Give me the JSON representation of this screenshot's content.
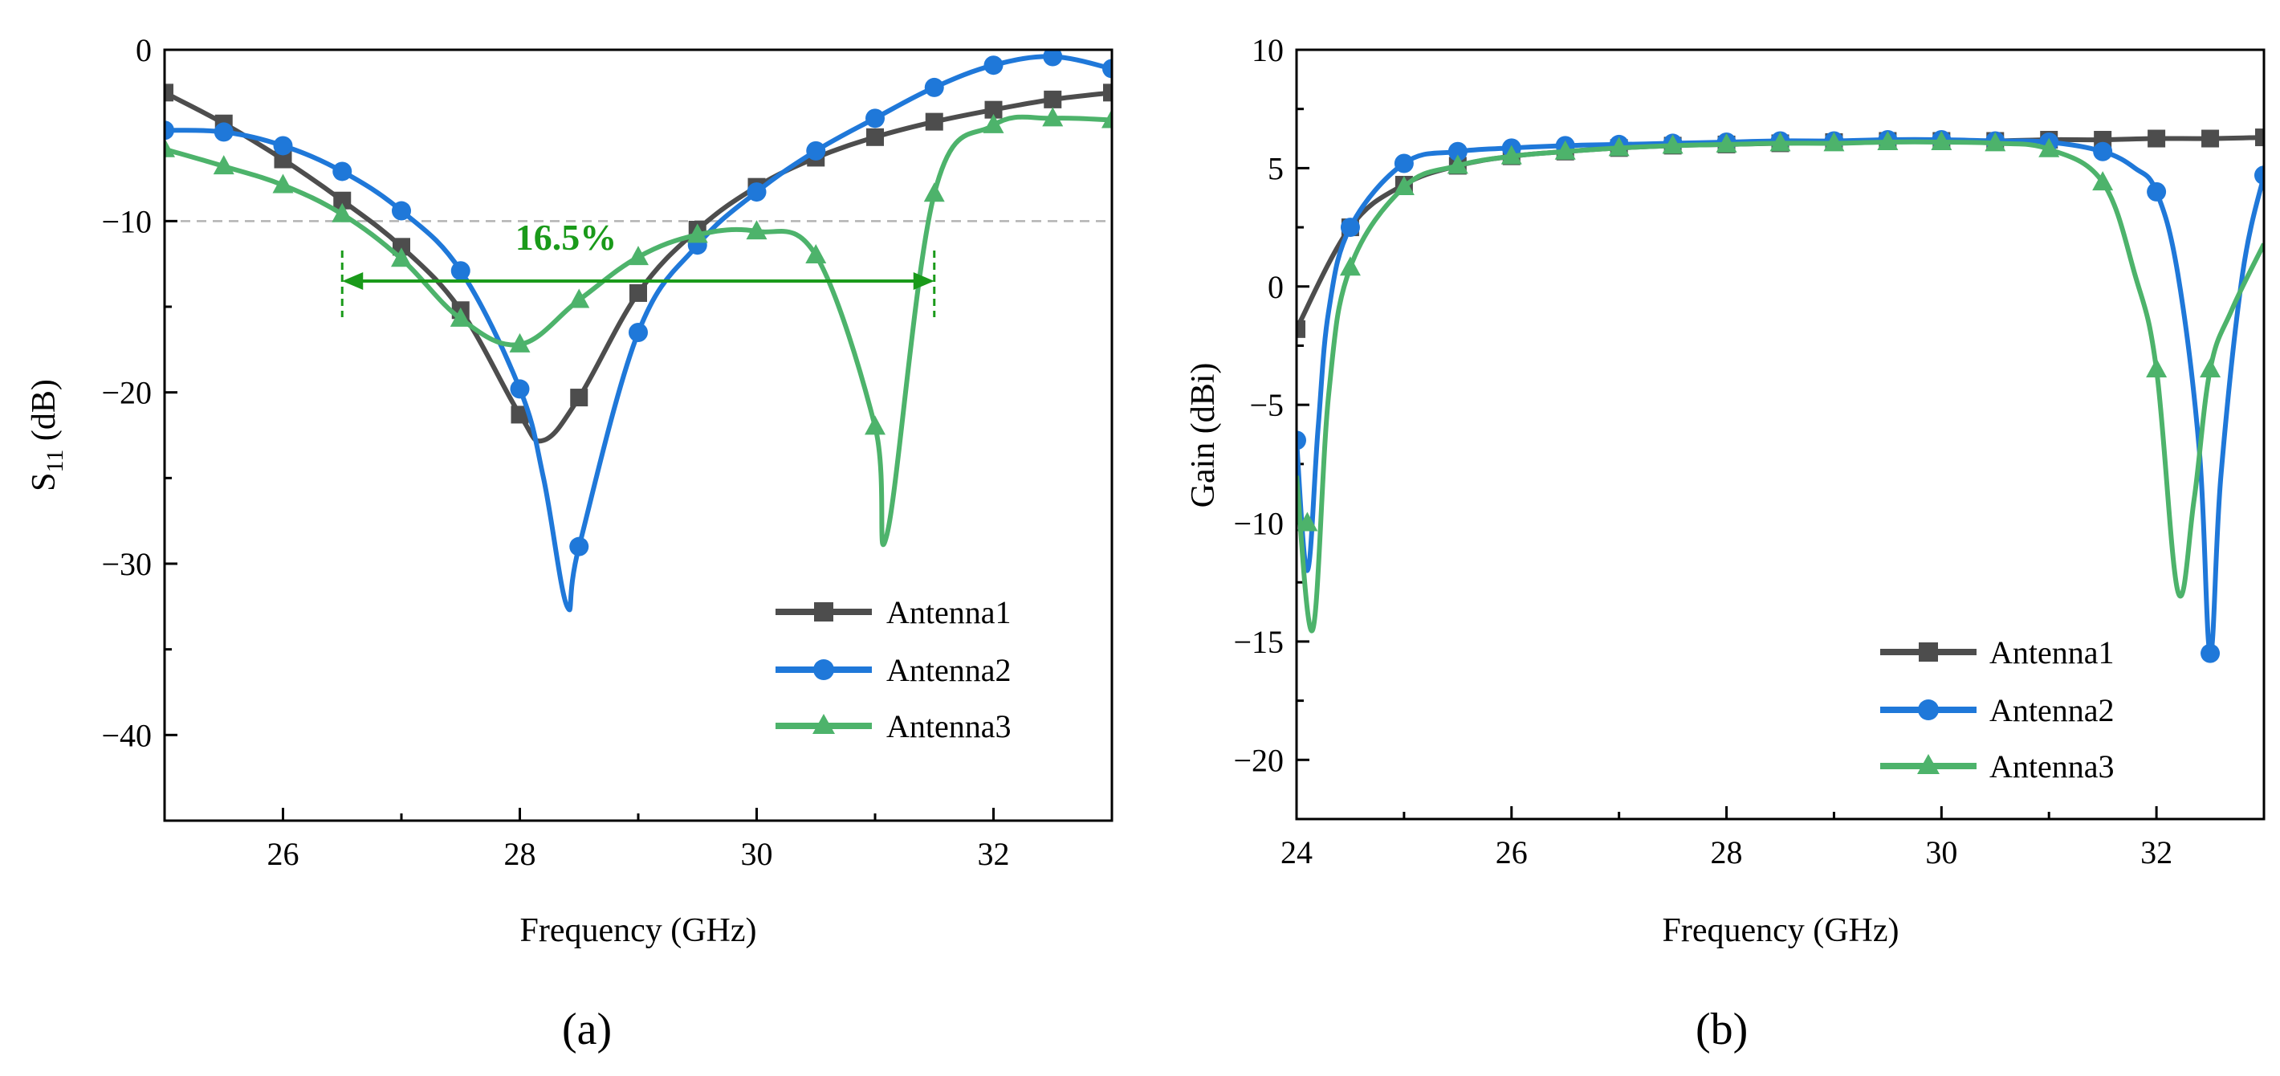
{
  "figure": {
    "panel_a_label": "(a)",
    "panel_b_label": "(b)",
    "colors": {
      "antenna1": "#4d4d4d",
      "antenna2": "#1f78d9",
      "antenna3": "#4db36b",
      "bandwidth": "#1a9a1a",
      "reference": "#b3b3b3"
    }
  },
  "chart_data": [
    {
      "type": "line",
      "panel": "(a)",
      "title": "",
      "xlabel": "Frequency (GHz)",
      "ylabel_main": "S",
      "ylabel_sub": "11",
      "ylabel_unit": " (dB)",
      "xlim": [
        25,
        33
      ],
      "ylim": [
        -45,
        0
      ],
      "xticks": [
        26,
        28,
        30,
        32
      ],
      "xtick_labels": [
        "26",
        "28",
        "30",
        "32"
      ],
      "yticks": [
        0,
        -10,
        -20,
        -30,
        -40
      ],
      "ytick_labels": [
        "0",
        "−10",
        "−20",
        "−30",
        "−40"
      ],
      "reference_line": -10,
      "annotation": {
        "text": "16.5%",
        "x_start": 26.5,
        "x_end": 31.5,
        "y": -11.2,
        "arrow_y": -13.5
      },
      "legend_position": "bottom-right",
      "series": [
        {
          "name": "Antenna1",
          "marker": "square",
          "x": [
            25,
            25.5,
            26,
            26.5,
            27,
            27.5,
            28,
            28.2,
            28.5,
            29,
            29.5,
            30,
            30.5,
            31,
            31.5,
            32,
            32.5,
            33
          ],
          "y": [
            -2.5,
            -4.3,
            -6.4,
            -8.8,
            -11.5,
            -15.2,
            -21.3,
            -22.8,
            -20.3,
            -14.2,
            -10.5,
            -8.0,
            -6.3,
            -5.1,
            -4.2,
            -3.5,
            -2.9,
            -2.5
          ],
          "marker_x": [
            25,
            25.5,
            26,
            26.5,
            27,
            27.5,
            28,
            28.5,
            29,
            29.5,
            30,
            30.5,
            31,
            31.5,
            32,
            32.5,
            33
          ],
          "marker_y": [
            -2.5,
            -4.3,
            -6.4,
            -8.8,
            -11.5,
            -15.2,
            -21.3,
            -20.3,
            -14.2,
            -10.5,
            -8.0,
            -6.3,
            -5.1,
            -4.2,
            -3.5,
            -2.9,
            -2.5
          ]
        },
        {
          "name": "Antenna2",
          "marker": "circle",
          "x": [
            25,
            25.5,
            26,
            26.5,
            27,
            27.5,
            28,
            28.2,
            28.4,
            28.5,
            29,
            29.5,
            30,
            30.5,
            31,
            31.5,
            32,
            32.5,
            33
          ],
          "y": [
            -4.7,
            -4.8,
            -5.6,
            -7.1,
            -9.4,
            -12.9,
            -19.8,
            -25.0,
            -32.5,
            -29.0,
            -16.5,
            -11.4,
            -8.3,
            -5.9,
            -4.0,
            -2.2,
            -0.9,
            -0.4,
            -1.1
          ],
          "marker_x": [
            25,
            25.5,
            26,
            26.5,
            27,
            27.5,
            28,
            28.5,
            29,
            29.5,
            30,
            30.5,
            31,
            31.5,
            32,
            32.5,
            33
          ],
          "marker_y": [
            -4.7,
            -4.8,
            -5.6,
            -7.1,
            -9.4,
            -12.9,
            -19.8,
            -29.0,
            -16.5,
            -11.4,
            -8.3,
            -5.9,
            -4.0,
            -2.2,
            -0.9,
            -0.4,
            -1.1
          ]
        },
        {
          "name": "Antenna3",
          "marker": "triangle",
          "x": [
            25,
            25.5,
            26,
            26.5,
            27,
            27.5,
            28,
            28.5,
            29,
            29.5,
            30,
            30.5,
            31,
            31.1,
            31.5,
            32,
            32.5,
            33
          ],
          "y": [
            -5.8,
            -6.8,
            -7.9,
            -9.6,
            -12.2,
            -15.7,
            -17.2,
            -14.6,
            -12.1,
            -10.8,
            -10.6,
            -12.0,
            -22.0,
            -28.3,
            -8.4,
            -4.4,
            -4.0,
            -4.1
          ],
          "marker_x": [
            25,
            25.5,
            26,
            26.5,
            27,
            27.5,
            28,
            28.5,
            29,
            29.5,
            30,
            30.5,
            31,
            31.5,
            32,
            32.5,
            33
          ],
          "marker_y": [
            -5.8,
            -6.8,
            -7.9,
            -9.6,
            -12.2,
            -15.7,
            -17.2,
            -14.6,
            -12.1,
            -10.8,
            -10.6,
            -12.0,
            -22.0,
            -8.4,
            -4.4,
            -4.0,
            -4.1
          ]
        }
      ]
    },
    {
      "type": "line",
      "panel": "(b)",
      "title": "",
      "xlabel": "Frequency (GHz)",
      "ylabel": "Gain (dBi)",
      "xlim": [
        24,
        33
      ],
      "ylim": [
        -22.5,
        10
      ],
      "xticks": [
        24,
        26,
        28,
        30,
        32
      ],
      "xtick_labels": [
        "24",
        "26",
        "28",
        "30",
        "32"
      ],
      "yticks": [
        10,
        5,
        0,
        -5,
        -10,
        -15,
        -20
      ],
      "ytick_labels": [
        "10",
        "5",
        "0",
        "−5",
        "−10",
        "−15",
        "−20"
      ],
      "legend_position": "bottom-right",
      "series": [
        {
          "name": "Antenna1",
          "marker": "square",
          "x": [
            24,
            24.5,
            25,
            25.5,
            26,
            26.5,
            27,
            27.5,
            28,
            28.5,
            29,
            29.5,
            30,
            30.5,
            31,
            31.5,
            32,
            32.5,
            33
          ],
          "y": [
            -1.8,
            2.5,
            4.3,
            5.1,
            5.5,
            5.7,
            5.85,
            5.95,
            6.0,
            6.05,
            6.1,
            6.15,
            6.15,
            6.15,
            6.2,
            6.2,
            6.25,
            6.25,
            6.3
          ],
          "marker_x": [
            24,
            24.5,
            25,
            25.5,
            26,
            26.5,
            27,
            27.5,
            28,
            28.5,
            29,
            29.5,
            30,
            30.5,
            31,
            31.5,
            32,
            32.5,
            33
          ],
          "marker_y": [
            -1.8,
            2.5,
            4.3,
            5.1,
            5.5,
            5.7,
            5.85,
            5.95,
            6.0,
            6.05,
            6.1,
            6.15,
            6.15,
            6.15,
            6.2,
            6.2,
            6.25,
            6.25,
            6.3
          ]
        },
        {
          "name": "Antenna2",
          "marker": "circle",
          "x": [
            24,
            24.1,
            24.2,
            24.3,
            24.5,
            25,
            25.5,
            26,
            26.5,
            27,
            27.5,
            28,
            28.5,
            29,
            29.5,
            30,
            30.5,
            31,
            31.5,
            31.8,
            32,
            32.2,
            32.4,
            32.5,
            32.6,
            32.8,
            33
          ],
          "y": [
            -6.5,
            -12.0,
            -6.0,
            -1.0,
            2.5,
            5.2,
            5.7,
            5.85,
            5.95,
            6.0,
            6.05,
            6.1,
            6.15,
            6.15,
            6.2,
            6.2,
            6.15,
            6.1,
            5.7,
            5.0,
            4.0,
            0.5,
            -7.0,
            -15.5,
            -8.0,
            0.5,
            4.7
          ],
          "marker_x": [
            24,
            24.5,
            25,
            25.5,
            26,
            26.5,
            27,
            27.5,
            28,
            28.5,
            29,
            29.5,
            30,
            30.5,
            31,
            31.5,
            32,
            32.5,
            33
          ],
          "marker_y": [
            -6.5,
            2.5,
            5.2,
            5.7,
            5.85,
            5.95,
            6.0,
            6.05,
            6.1,
            6.15,
            6.15,
            6.2,
            6.2,
            6.15,
            6.1,
            5.7,
            4.0,
            -15.5,
            4.7
          ]
        },
        {
          "name": "Antenna3",
          "marker": "triangle",
          "x": [
            24,
            24.15,
            24.3,
            24.5,
            25,
            25.5,
            26,
            26.5,
            27,
            27.5,
            28,
            28.5,
            29,
            29.5,
            30,
            30.5,
            31,
            31.5,
            31.8,
            32,
            32.2,
            32.35,
            32.5,
            32.7,
            33
          ],
          "y": [
            -8.0,
            -14.5,
            -4.5,
            0.8,
            4.2,
            5.1,
            5.5,
            5.7,
            5.85,
            5.95,
            6.0,
            6.05,
            6.05,
            6.1,
            6.1,
            6.05,
            5.8,
            4.4,
            0.5,
            -3.5,
            -12.9,
            -9.0,
            -3.5,
            -1.0,
            1.8
          ],
          "marker_x": [
            24.1,
            24.5,
            25,
            25.5,
            26,
            26.5,
            27,
            27.5,
            28,
            28.5,
            29,
            29.5,
            30,
            30.5,
            31,
            31.5,
            32,
            32.5
          ],
          "marker_y": [
            -10.0,
            0.8,
            4.2,
            5.1,
            5.5,
            5.7,
            5.85,
            5.95,
            6.0,
            6.05,
            6.05,
            6.1,
            6.1,
            6.05,
            5.8,
            4.4,
            -3.5,
            -3.5
          ]
        }
      ]
    }
  ]
}
